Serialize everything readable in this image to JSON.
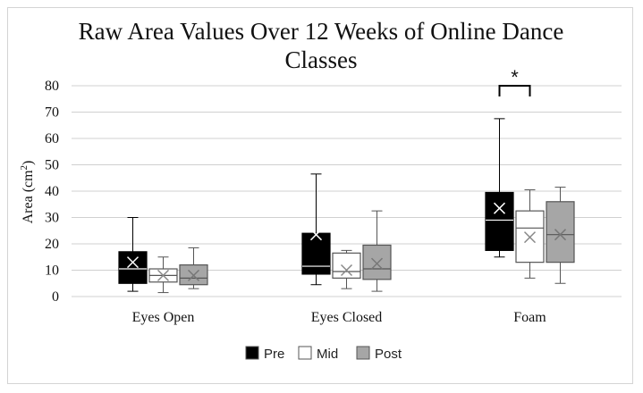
{
  "chart_data": {
    "type": "box",
    "title_line1": "Raw Area Values Over 12 Weeks of Online Dance",
    "title_line2": "Classes",
    "ylabel": "Area (cm",
    "ylabel_sup": "2",
    "ylabel_close": ")",
    "ylim": [
      0,
      80
    ],
    "yticks": [
      0,
      10,
      20,
      30,
      40,
      50,
      60,
      70,
      80
    ],
    "categories": [
      "Eyes Open",
      "Eyes Closed",
      "Foam"
    ],
    "series": [
      {
        "name": "Pre",
        "fill": "#000000",
        "stroke": "#000000",
        "marker": "#ffffff",
        "boxes": [
          {
            "min": 2,
            "q1": 5,
            "median": 10.5,
            "q3": 17,
            "max": 30,
            "mean": 13
          },
          {
            "min": 4.5,
            "q1": 8.5,
            "median": 11.5,
            "q3": 24,
            "max": 46.5,
            "mean": 23.5
          },
          {
            "min": 15,
            "q1": 17.5,
            "median": 29,
            "q3": 39.5,
            "max": 67.5,
            "mean": 33.5
          }
        ]
      },
      {
        "name": "Mid",
        "fill": "#ffffff",
        "stroke": "#555555",
        "marker": "#888888",
        "boxes": [
          {
            "min": 1.5,
            "q1": 5.5,
            "median": 8,
            "q3": 10.5,
            "max": 15,
            "mean": 8
          },
          {
            "min": 3,
            "q1": 7,
            "median": 9.5,
            "q3": 16.5,
            "max": 17.5,
            "mean": 10
          },
          {
            "min": 7,
            "q1": 13,
            "median": 26,
            "q3": 32.5,
            "max": 40.5,
            "mean": 22.5
          }
        ]
      },
      {
        "name": "Post",
        "fill": "#a6a6a6",
        "stroke": "#555555",
        "marker": "#777777",
        "boxes": [
          {
            "min": 3,
            "q1": 4.5,
            "median": 7,
            "q3": 12,
            "max": 18.5,
            "mean": 8
          },
          {
            "min": 2,
            "q1": 6.5,
            "median": 10.5,
            "q3": 19.5,
            "max": 32.5,
            "mean": 12.5
          },
          {
            "min": 5,
            "q1": 13,
            "median": 23.5,
            "q3": 36,
            "max": 41.5,
            "mean": 23.5
          }
        ]
      }
    ],
    "annotation": {
      "text": "*",
      "category": "Foam",
      "from_series": "Pre",
      "to_series": "Mid",
      "y": 80
    },
    "grid": true,
    "legend_position": "bottom"
  }
}
